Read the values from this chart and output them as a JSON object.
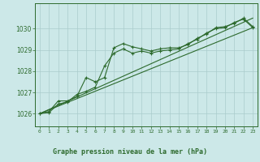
{
  "title": "Graphe pression niveau de la mer (hPa)",
  "bg_color": "#cce8e8",
  "plot_bg": "#cce8e8",
  "grid_color": "#aacccc",
  "line_color": "#2d6a2d",
  "label_bg": "#cce8e8",
  "x_ticks": [
    0,
    1,
    2,
    3,
    4,
    5,
    6,
    7,
    8,
    9,
    10,
    11,
    12,
    13,
    14,
    15,
    16,
    17,
    18,
    19,
    20,
    21,
    22,
    23
  ],
  "ylim": [
    1025.4,
    1031.2
  ],
  "y_ticks": [
    1026,
    1027,
    1028,
    1029,
    1030
  ],
  "series1_x": [
    0,
    1,
    2,
    3,
    4,
    5,
    6,
    7,
    8,
    9,
    10,
    11,
    12,
    13,
    14,
    15,
    16,
    17,
    18,
    19,
    20,
    21,
    22,
    23
  ],
  "series1_y": [
    1026.0,
    1026.1,
    1026.6,
    1026.6,
    1026.8,
    1027.7,
    1027.5,
    1027.7,
    1029.1,
    1029.3,
    1029.15,
    1029.05,
    1028.95,
    1029.05,
    1029.1,
    1029.1,
    1029.25,
    1029.55,
    1029.75,
    1030.05,
    1030.1,
    1030.25,
    1030.5,
    1030.1
  ],
  "series2_x": [
    0,
    1,
    2,
    3,
    4,
    5,
    6,
    7,
    8,
    9,
    10,
    11,
    12,
    13,
    14,
    15,
    16,
    17,
    18,
    19,
    20,
    21,
    22,
    23
  ],
  "series2_y": [
    1026.0,
    1026.05,
    1026.45,
    1026.55,
    1026.9,
    1027.05,
    1027.25,
    1028.25,
    1028.85,
    1029.05,
    1028.85,
    1028.95,
    1028.85,
    1028.95,
    1029.0,
    1029.05,
    1029.3,
    1029.5,
    1029.8,
    1030.0,
    1030.05,
    1030.3,
    1030.45,
    1030.05
  ],
  "line1_x": [
    0,
    23
  ],
  "line1_y": [
    1026.0,
    1030.05
  ],
  "line2_x": [
    0,
    23
  ],
  "line2_y": [
    1026.0,
    1030.5
  ]
}
